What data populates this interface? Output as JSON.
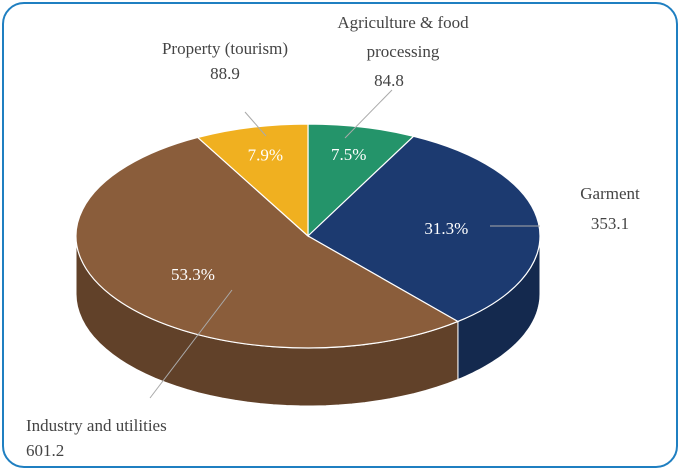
{
  "chart_data": {
    "type": "pie3d",
    "categories": [
      "Agriculture & food processing",
      "Garment",
      "Industry and utilities",
      "Property (tourism)"
    ],
    "values": [
      84.8,
      353.1,
      601.2,
      88.9
    ],
    "percent_labels": [
      "7.5%",
      "31.3%",
      "53.3%",
      "7.9%"
    ],
    "colors": [
      "#24946a",
      "#1c3a70",
      "#8a5d3b",
      "#f0b020"
    ]
  }
}
